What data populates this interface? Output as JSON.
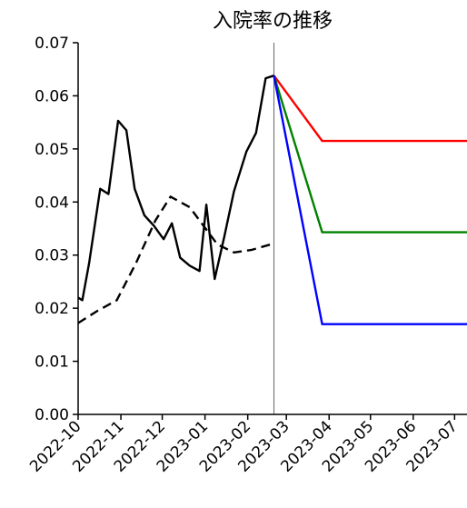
{
  "chart_data": {
    "type": "line",
    "title": "入院率の推移",
    "xlabel": "",
    "ylabel": "",
    "x_tick_labels": [
      "2022-10",
      "2022-11",
      "2022-12",
      "2023-01",
      "2023-02",
      "2023-03",
      "2023-04",
      "2023-05",
      "2023-06",
      "2023-07"
    ],
    "xlim": [
      "2022-10-01",
      "2023-07-10"
    ],
    "ylim": [
      0,
      0.07
    ],
    "y_ticks": [
      "0.00",
      "0.01",
      "0.02",
      "0.03",
      "0.04",
      "0.05",
      "0.06",
      "0.07"
    ],
    "vertical_line": "2023-02-20",
    "grid": false,
    "series": [
      {
        "color": "#000000",
        "style": "solid",
        "points": [
          [
            "2022-10-01",
            0.022
          ],
          [
            "2022-10-04",
            0.0215
          ],
          [
            "2022-10-09",
            0.0285
          ],
          [
            "2022-10-17",
            0.0425
          ],
          [
            "2022-10-23",
            0.0415
          ],
          [
            "2022-10-30",
            0.0553
          ],
          [
            "2022-11-05",
            0.0535
          ],
          [
            "2022-11-11",
            0.0425
          ],
          [
            "2022-11-18",
            0.0375
          ],
          [
            "2022-11-25",
            0.0355
          ],
          [
            "2022-12-02",
            0.033
          ],
          [
            "2022-12-08",
            0.036
          ],
          [
            "2022-12-14",
            0.0295
          ],
          [
            "2022-12-21",
            0.028
          ],
          [
            "2022-12-28",
            0.027
          ],
          [
            "2023-01-02",
            0.0395
          ],
          [
            "2023-01-08",
            0.0255
          ],
          [
            "2023-01-15",
            0.0335
          ],
          [
            "2023-01-22",
            0.042
          ],
          [
            "2023-01-31",
            0.0495
          ],
          [
            "2023-02-07",
            0.053
          ],
          [
            "2023-02-14",
            0.0633
          ],
          [
            "2023-02-20",
            0.0638
          ]
        ]
      },
      {
        "color": "#000000",
        "style": "dashed",
        "points": [
          [
            "2022-10-01",
            0.0172
          ],
          [
            "2022-10-15",
            0.0195
          ],
          [
            "2022-10-29",
            0.0215
          ],
          [
            "2022-11-12",
            0.0285
          ],
          [
            "2022-11-26",
            0.0365
          ],
          [
            "2022-12-07",
            0.041
          ],
          [
            "2022-12-21",
            0.039
          ],
          [
            "2022-12-31",
            0.0355
          ],
          [
            "2023-01-10",
            0.032
          ],
          [
            "2023-01-22",
            0.0305
          ],
          [
            "2023-02-04",
            0.031
          ],
          [
            "2023-02-20",
            0.0322
          ]
        ]
      },
      {
        "color": "#ff0000",
        "style": "solid",
        "points": [
          [
            "2023-02-20",
            0.0638
          ],
          [
            "2023-03-27",
            0.0515
          ],
          [
            "2023-07-10",
            0.0515
          ]
        ]
      },
      {
        "color": "#008000",
        "style": "solid",
        "points": [
          [
            "2023-02-20",
            0.0638
          ],
          [
            "2023-03-27",
            0.0343
          ],
          [
            "2023-07-10",
            0.0343
          ]
        ]
      },
      {
        "color": "#0000ff",
        "style": "solid",
        "points": [
          [
            "2023-02-20",
            0.0638
          ],
          [
            "2023-03-27",
            0.017
          ],
          [
            "2023-07-10",
            0.017
          ]
        ]
      }
    ]
  }
}
